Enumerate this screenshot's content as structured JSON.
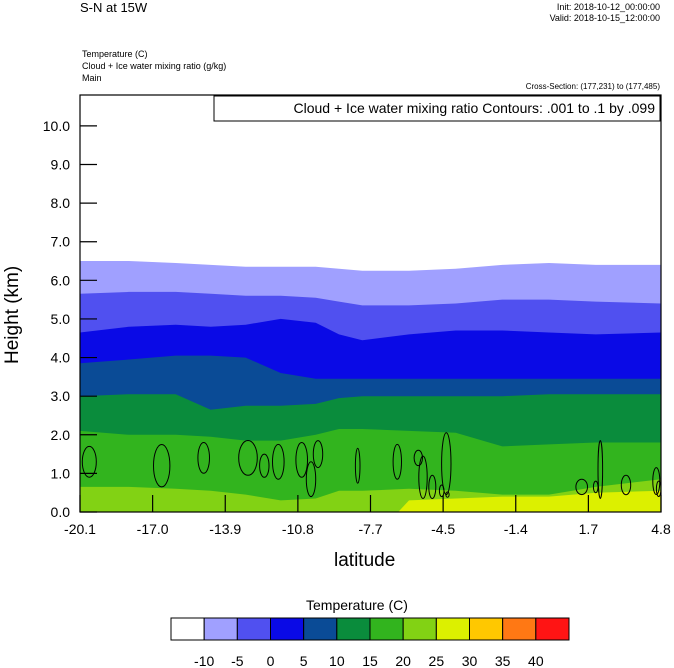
{
  "header": {
    "title": "S-N at 15W",
    "init": "Init: 2018-10-12_00:00:00",
    "valid": "Valid: 2018-10-15_12:00:00",
    "fields": [
      "Temperature   (C)",
      "Cloud + Ice water mixing ratio   (g/kg)",
      "Main"
    ],
    "cross_section": "Cross-Section: (177,231) to (177,485)"
  },
  "chart_data": {
    "type": "heatmap",
    "contour_note": "Cloud + Ice water mixing ratio Contours: .001 to .1 by .099",
    "xlabel": "latitude",
    "ylabel": "Height (km)",
    "x_ticks": [
      "-20.1",
      "-17.0",
      "-13.9",
      "-10.8",
      "-7.7",
      "-4.5",
      "-1.4",
      "1.7",
      "4.8"
    ],
    "y_ticks": [
      "0.0",
      "1.0",
      "2.0",
      "3.0",
      "4.0",
      "5.0",
      "6.0",
      "7.0",
      "8.0",
      "9.0",
      "10.0"
    ],
    "xlim": [
      -20.1,
      4.8
    ],
    "ylim": [
      0,
      10.8
    ],
    "x": [
      -20.1,
      -18.0,
      -16.0,
      -14.5,
      -13.0,
      -11.5,
      -10.0,
      -9.0,
      -8.0,
      -6.0,
      -4.0,
      -2.0,
      0.0,
      2.0,
      4.8
    ],
    "temperature_levels": [
      -10,
      -5,
      0,
      5,
      10,
      15,
      20,
      25,
      30,
      35,
      40
    ],
    "temperature_colors": [
      "#ffffff",
      "#a0a0ff",
      "#5050f0",
      "#0a0ae6",
      "#0a4b96",
      "#0a8c3c",
      "#32b41e",
      "#82d214",
      "#dcf000",
      "#ffc800",
      "#ff7814",
      "#ff1414"
    ],
    "isotherm_heights_km": [
      {
        "temp": -10,
        "values": [
          6.5,
          6.5,
          6.45,
          6.4,
          6.35,
          6.35,
          6.35,
          6.3,
          6.25,
          6.25,
          6.3,
          6.4,
          6.45,
          6.4,
          6.4
        ]
      },
      {
        "temp": -5,
        "values": [
          5.65,
          5.7,
          5.7,
          5.65,
          5.6,
          5.6,
          5.55,
          5.45,
          5.35,
          5.35,
          5.4,
          5.5,
          5.5,
          5.45,
          5.4
        ]
      },
      {
        "temp": 0,
        "values": [
          4.65,
          4.8,
          4.85,
          4.8,
          4.85,
          5.0,
          4.9,
          4.6,
          4.45,
          4.6,
          4.7,
          4.7,
          4.65,
          4.6,
          4.65
        ]
      },
      {
        "temp": 5,
        "values": [
          3.85,
          3.95,
          4.05,
          4.05,
          4.0,
          3.6,
          3.45,
          3.45,
          3.45,
          3.45,
          3.45,
          3.45,
          3.45,
          3.45,
          3.45
        ]
      },
      {
        "temp": 10,
        "values": [
          3.0,
          3.05,
          3.05,
          2.65,
          2.75,
          2.75,
          2.8,
          2.95,
          3.0,
          3.0,
          3.0,
          3.0,
          3.05,
          3.05,
          3.05
        ]
      },
      {
        "temp": 15,
        "values": [
          2.1,
          2.0,
          2.0,
          1.95,
          1.85,
          1.85,
          2.0,
          2.15,
          2.15,
          2.1,
          2.05,
          1.7,
          1.75,
          1.8,
          1.8
        ]
      },
      {
        "temp": 20,
        "values": [
          0.65,
          0.65,
          0.6,
          0.55,
          0.45,
          0.3,
          0.35,
          0.55,
          0.55,
          0.6,
          0.55,
          0.45,
          0.45,
          0.65,
          0.85
        ]
      },
      {
        "temp": 25,
        "values": [
          -1,
          -1,
          -1,
          -1,
          -1,
          -1,
          -1,
          -1,
          -1,
          0.3,
          0.35,
          0.4,
          0.4,
          0.5,
          0.55
        ]
      }
    ],
    "cloud_contours_km": [
      {
        "x": -19.7,
        "y": 1.3,
        "rx": 0.3,
        "ry": 0.4
      },
      {
        "x": -16.6,
        "y": 1.2,
        "rx": 0.35,
        "ry": 0.55
      },
      {
        "x": -14.8,
        "y": 1.4,
        "rx": 0.25,
        "ry": 0.4
      },
      {
        "x": -12.9,
        "y": 1.4,
        "rx": 0.4,
        "ry": 0.45
      },
      {
        "x": -12.2,
        "y": 1.2,
        "rx": 0.2,
        "ry": 0.3
      },
      {
        "x": -11.6,
        "y": 1.3,
        "rx": 0.25,
        "ry": 0.45
      },
      {
        "x": -10.6,
        "y": 1.35,
        "rx": 0.25,
        "ry": 0.45
      },
      {
        "x": -10.2,
        "y": 0.85,
        "rx": 0.2,
        "ry": 0.45
      },
      {
        "x": -9.9,
        "y": 1.5,
        "rx": 0.2,
        "ry": 0.35
      },
      {
        "x": -8.2,
        "y": 1.2,
        "rx": 0.1,
        "ry": 0.45
      },
      {
        "x": -6.5,
        "y": 1.3,
        "rx": 0.18,
        "ry": 0.45
      },
      {
        "x": -5.6,
        "y": 1.4,
        "rx": 0.18,
        "ry": 0.2
      },
      {
        "x": -5.4,
        "y": 0.9,
        "rx": 0.18,
        "ry": 0.55
      },
      {
        "x": -5.0,
        "y": 0.65,
        "rx": 0.15,
        "ry": 0.3
      },
      {
        "x": -4.4,
        "y": 1.25,
        "rx": 0.2,
        "ry": 0.8
      },
      {
        "x": -4.6,
        "y": 0.55,
        "rx": 0.1,
        "ry": 0.15
      },
      {
        "x": -4.35,
        "y": 0.45,
        "rx": 0.07,
        "ry": 0.07
      },
      {
        "x": 1.4,
        "y": 0.65,
        "rx": 0.25,
        "ry": 0.2
      },
      {
        "x": 2.0,
        "y": 0.65,
        "rx": 0.1,
        "ry": 0.15
      },
      {
        "x": 2.2,
        "y": 1.1,
        "rx": 0.1,
        "ry": 0.75
      },
      {
        "x": 3.3,
        "y": 0.7,
        "rx": 0.2,
        "ry": 0.25
      },
      {
        "x": 4.6,
        "y": 0.8,
        "rx": 0.15,
        "ry": 0.35
      },
      {
        "x": 4.7,
        "y": 0.6,
        "rx": 0.1,
        "ry": 0.2
      }
    ],
    "colorbar": {
      "title": "Temperature  (C)",
      "labels": [
        "-10",
        "-5",
        "0",
        "5",
        "10",
        "15",
        "20",
        "25",
        "30",
        "35",
        "40"
      ]
    }
  }
}
